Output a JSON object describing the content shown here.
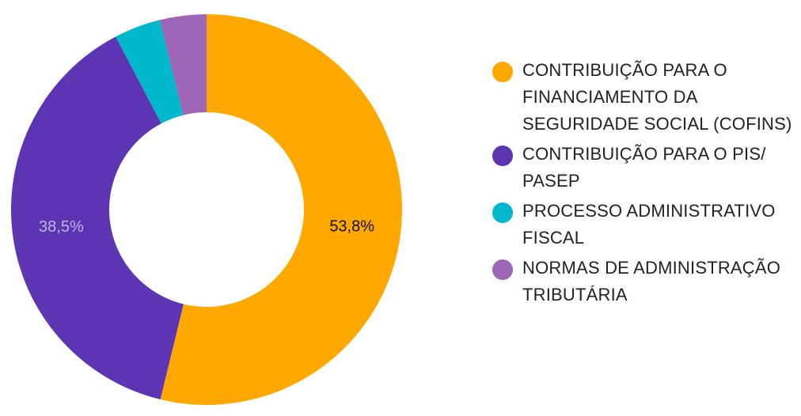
{
  "chart_data": {
    "type": "pie",
    "variant": "donut",
    "title": "",
    "legend_position": "right",
    "series": [
      {
        "name": "CONTRIBUIÇÃO PARA O FINANCIAMENTO DA SEGURIDADE SOCIAL (COFINS)",
        "value": 53.8,
        "label": "53,8%",
        "color": "#FFA800",
        "label_color": "#111111"
      },
      {
        "name": "CONTRIBUIÇÃO PARA O PIS/ PASEP",
        "value": 38.5,
        "label": "38,5%",
        "color": "#5C35B2",
        "label_color": "#BFB4DF"
      },
      {
        "name": "PROCESSO ADMINISTRATIVO FISCAL",
        "value": 3.85,
        "label": "",
        "color": "#00B7CC",
        "label_color": "#111111"
      },
      {
        "name": "NORMAS DE ADMINISTRAÇÃO TRIBUTÁRIA",
        "value": 3.85,
        "label": "",
        "color": "#9E66B4",
        "label_color": "#111111"
      }
    ]
  }
}
